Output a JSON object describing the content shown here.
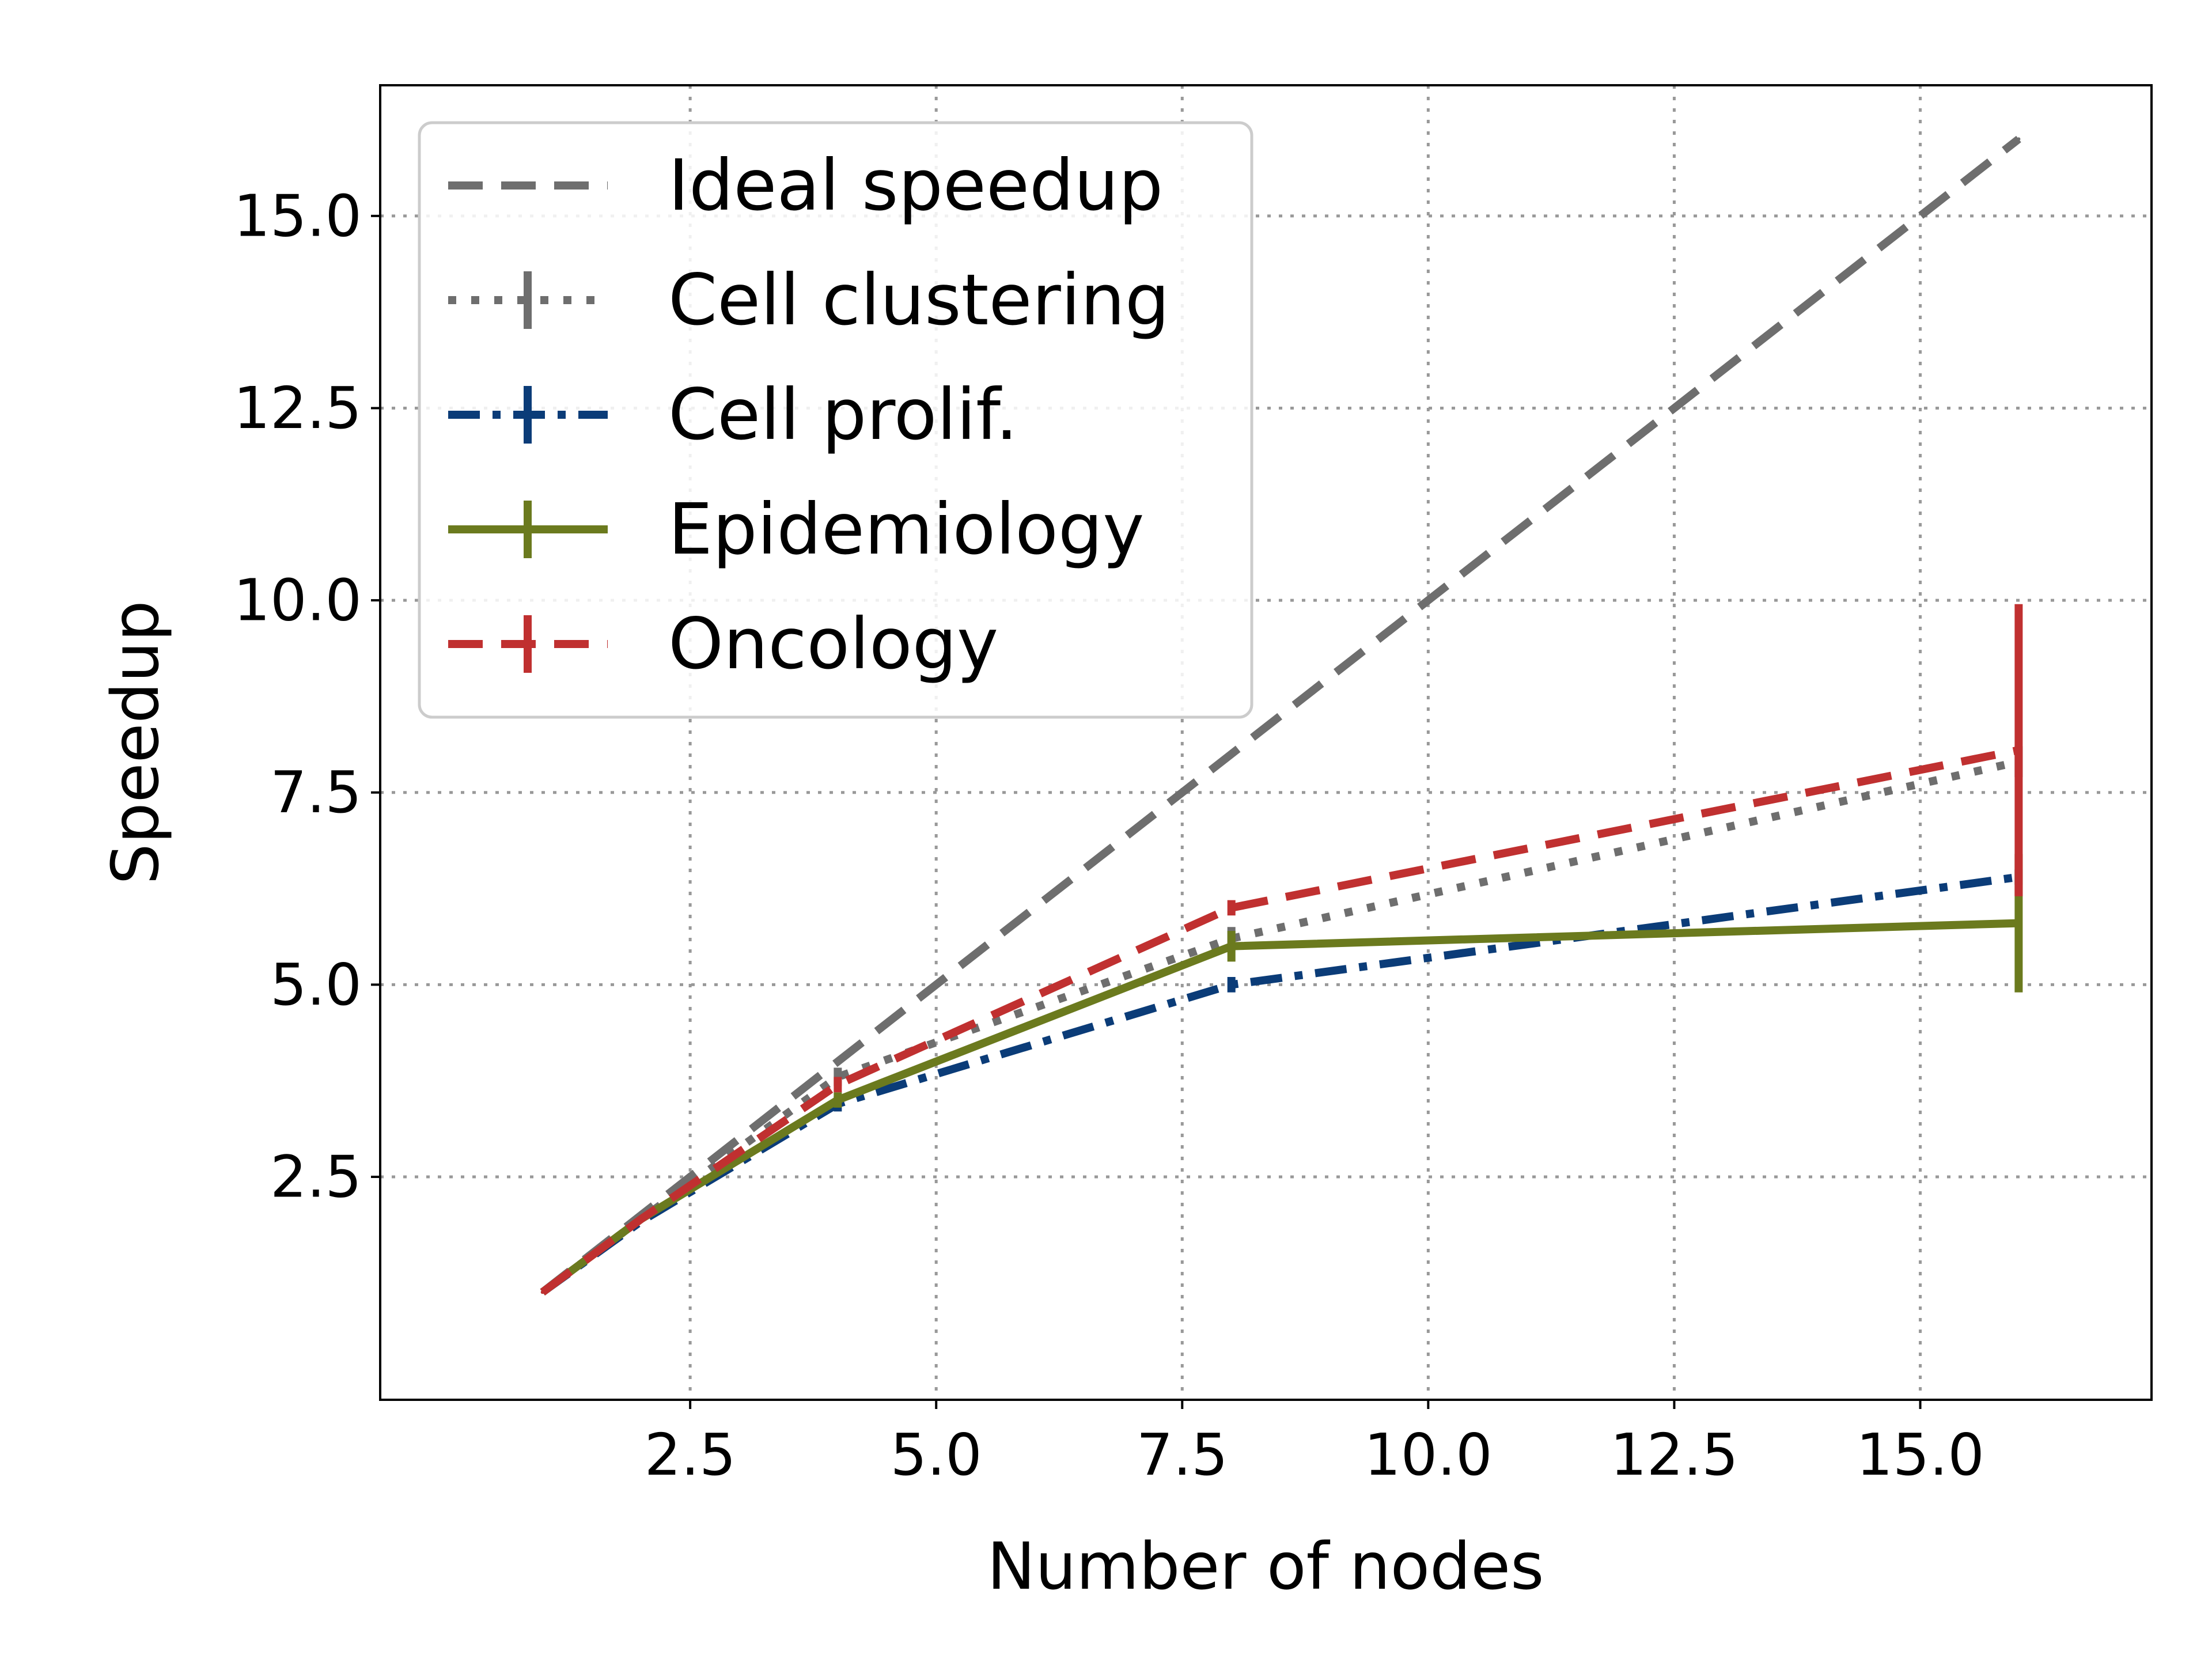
{
  "chart_data": {
    "type": "line",
    "xlabel": "Number of nodes",
    "ylabel": "Speedup",
    "xlim": [
      -0.65,
      17.35
    ],
    "ylim": [
      -0.4,
      16.7
    ],
    "xticks": [
      2.5,
      5.0,
      7.5,
      10.0,
      12.5,
      15.0
    ],
    "xtick_labels": [
      "2.5",
      "5.0",
      "7.5",
      "10.0",
      "12.5",
      "15.0"
    ],
    "yticks": [
      2.5,
      5.0,
      7.5,
      10.0,
      12.5,
      15.0
    ],
    "ytick_labels": [
      "2.5",
      "5.0",
      "7.5",
      "10.0",
      "12.5",
      "15.0"
    ],
    "grid": true,
    "legend_position": "top-left",
    "series": [
      {
        "name": "Ideal speedup",
        "color": "#6e6e6e",
        "dash": "dashed",
        "x": [
          1,
          2,
          4,
          8,
          16
        ],
        "y": [
          1,
          2,
          4,
          8,
          16
        ],
        "err": [
          0,
          0,
          0,
          0,
          0
        ]
      },
      {
        "name": "Cell clustering",
        "color": "#6e6e6e",
        "dash": "dotted",
        "x": [
          1,
          2,
          4,
          8,
          16
        ],
        "y": [
          1,
          1.95,
          3.8,
          5.6,
          7.9
        ],
        "err": [
          0,
          0,
          0.12,
          0.15,
          0.2
        ]
      },
      {
        "name": "Cell prolif.",
        "color": "#0b3c78",
        "dash": "dashdot",
        "x": [
          1,
          2,
          4,
          8,
          16
        ],
        "y": [
          1,
          1.92,
          3.45,
          5.0,
          6.4
        ],
        "err": [
          0,
          0,
          0.1,
          0.1,
          0.1
        ]
      },
      {
        "name": "Epidemiology",
        "color": "#6b7a1e",
        "dash": "solid",
        "x": [
          1,
          2,
          4,
          8,
          16
        ],
        "y": [
          1,
          1.95,
          3.5,
          5.5,
          5.8
        ],
        "err": [
          0,
          0,
          0.1,
          0.2,
          0.9
        ]
      },
      {
        "name": "Oncology",
        "color": "#c03030",
        "dash": "dashed",
        "x": [
          1,
          2,
          4,
          8,
          16
        ],
        "y": [
          1,
          1.95,
          3.7,
          6.0,
          8.05
        ],
        "err": [
          0,
          0,
          0.1,
          0.1,
          1.9
        ]
      }
    ]
  }
}
